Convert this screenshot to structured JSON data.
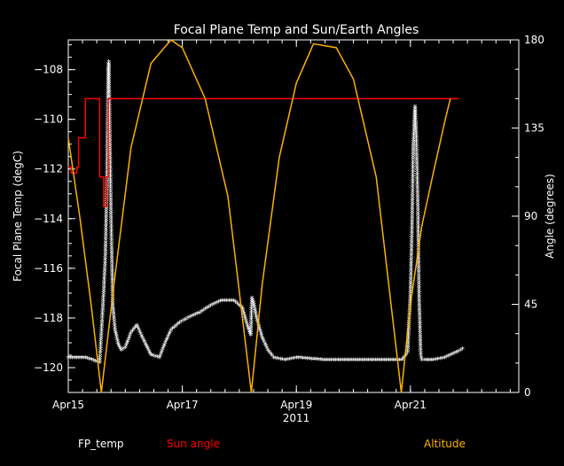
{
  "chart_data": {
    "type": "line",
    "title": "Focal Plane Temp and Sun/Earth Angles",
    "xlabel": "2011",
    "ylabel_left": "Focal Plane Temp (degC)",
    "ylabel_right": "Angle (degrees)",
    "x_unit": "day of April 2011",
    "xlim": [
      15.0,
      22.9
    ],
    "ylim_left": [
      -121.0,
      -106.8
    ],
    "ylim_right": [
      0,
      180
    ],
    "x_ticks": [
      {
        "value": 15,
        "label": "Apr15"
      },
      {
        "value": 17,
        "label": "Apr17"
      },
      {
        "value": 19,
        "label": "Apr19"
      },
      {
        "value": 21,
        "label": "Apr21"
      }
    ],
    "y_ticks_left": [
      {
        "value": -120,
        "label": "−120"
      },
      {
        "value": -118,
        "label": "−118"
      },
      {
        "value": -116,
        "label": "−116"
      },
      {
        "value": -114,
        "label": "−114"
      },
      {
        "value": -112,
        "label": "−112"
      },
      {
        "value": -110,
        "label": "−110"
      },
      {
        "value": -108,
        "label": "−108"
      }
    ],
    "y_ticks_right": [
      {
        "value": 0,
        "label": "0"
      },
      {
        "value": 45,
        "label": "45"
      },
      {
        "value": 90,
        "label": "90"
      },
      {
        "value": 135,
        "label": "135"
      },
      {
        "value": 180,
        "label": "180"
      }
    ],
    "grid": false,
    "legend_position": "bottom",
    "series": [
      {
        "name": "FP_temp",
        "axis": "left",
        "style": "markers",
        "color": "#ffffff",
        "x": [
          15.0,
          15.3,
          15.55,
          15.62,
          15.65,
          15.68,
          15.7,
          15.71,
          15.73,
          15.75,
          15.78,
          15.82,
          15.88,
          15.93,
          16.0,
          16.1,
          16.2,
          16.32,
          16.45,
          16.6,
          16.7,
          16.8,
          16.95,
          17.1,
          17.3,
          17.5,
          17.7,
          17.9,
          18.05,
          18.15,
          18.2,
          18.22,
          18.25,
          18.3,
          18.4,
          18.5,
          18.6,
          18.8,
          19.0,
          19.5,
          20.0,
          20.5,
          20.85,
          20.95,
          21.0,
          21.03,
          21.05,
          21.08,
          21.1,
          21.13,
          21.15,
          21.18,
          21.2,
          21.25,
          21.4,
          21.6,
          21.8,
          21.95
        ],
        "y": [
          -119.6,
          -119.6,
          -119.8,
          -117.0,
          -115.5,
          -112.0,
          -108.0,
          -107.7,
          -111.0,
          -114.0,
          -117.5,
          -118.5,
          -119.1,
          -119.3,
          -119.2,
          -118.6,
          -118.3,
          -118.9,
          -119.5,
          -119.6,
          -119.0,
          -118.5,
          -118.2,
          -118.0,
          -117.8,
          -117.5,
          -117.3,
          -117.3,
          -117.6,
          -118.4,
          -118.7,
          -117.2,
          -117.4,
          -118.0,
          -118.8,
          -119.3,
          -119.6,
          -119.7,
          -119.6,
          -119.7,
          -119.7,
          -119.7,
          -119.7,
          -119.4,
          -117.0,
          -114.0,
          -111.0,
          -109.5,
          -110.5,
          -113.5,
          -117.0,
          -119.5,
          -119.7,
          -119.7,
          -119.7,
          -119.6,
          -119.4,
          -119.2
        ]
      },
      {
        "name": "Sun angle",
        "axis": "right",
        "style": "step",
        "color": "#ff0000",
        "x": [
          15.0,
          15.05,
          15.08,
          15.15,
          15.18,
          15.28,
          15.3,
          15.35,
          15.4,
          15.5,
          15.55,
          15.62,
          15.67,
          15.7,
          15.78,
          15.85,
          16.05,
          16.25,
          16.3,
          16.38,
          16.45,
          16.5,
          17.5,
          17.9,
          17.95,
          17.98,
          18.02,
          18.1,
          18.2,
          18.3,
          18.4,
          19.0,
          19.15,
          19.3,
          19.45,
          19.52,
          19.68,
          19.72,
          20.0,
          20.2,
          20.6,
          21.1,
          21.15,
          21.2,
          21.25,
          21.3,
          21.35,
          21.45,
          21.65,
          21.7,
          21.75,
          21.85
        ],
        "y": [
          115,
          112,
          112,
          115,
          130,
          130,
          150,
          150,
          150,
          150,
          110,
          95,
          110,
          150,
          150,
          150,
          150,
          150,
          150,
          150,
          150,
          150,
          150,
          150,
          150,
          150,
          150,
          150,
          150,
          150,
          150,
          150,
          150,
          150,
          150,
          150,
          150,
          150,
          150,
          150,
          150,
          150,
          150,
          150,
          150,
          150,
          150,
          150,
          150,
          150,
          150,
          150
        ]
      },
      {
        "name": "Altitude",
        "axis": "right",
        "style": "line",
        "color": "#ffb000",
        "x": [
          15.0,
          15.2,
          15.4,
          15.58,
          15.8,
          16.1,
          16.45,
          16.8,
          17.0,
          17.4,
          17.8,
          18.21,
          18.4,
          18.7,
          19.0,
          19.3,
          19.7,
          20.0,
          20.4,
          20.84,
          21.0,
          21.2,
          21.4,
          21.6,
          21.7
        ],
        "y": [
          130,
          90,
          45,
          0,
          55,
          125,
          168,
          180,
          176,
          150,
          100,
          0,
          55,
          120,
          158,
          178,
          176,
          160,
          110,
          0,
          45,
          85,
          112,
          138,
          150
        ]
      }
    ]
  }
}
